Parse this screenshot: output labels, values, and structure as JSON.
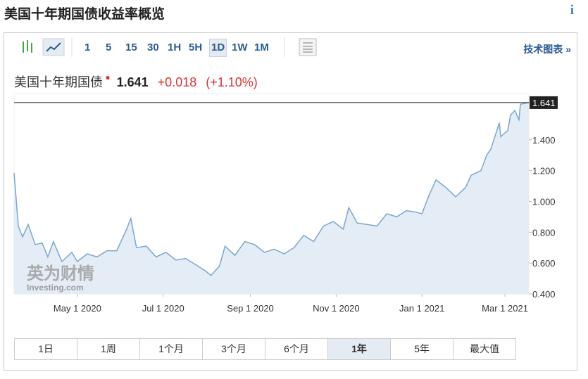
{
  "header": {
    "title": "美国十年期国债收益率概览",
    "info": "i"
  },
  "toolbar": {
    "intervals": [
      "1",
      "5",
      "15",
      "30",
      "1H",
      "5H",
      "1D",
      "1W",
      "1M"
    ],
    "selected_interval": "1D",
    "tech_chart": "技术图表 »"
  },
  "quote": {
    "name": "美国十年期国债",
    "last": "1.641",
    "change": "+0.018",
    "change_pct": "(+1.10%)"
  },
  "watermark": {
    "cn": "英为财情",
    "en": "Investing.com"
  },
  "ranges": {
    "items": [
      "1日",
      "1周",
      "1个月",
      "3个月",
      "6个月",
      "1年",
      "5年",
      "最大值"
    ],
    "selected": "1年"
  },
  "chart_data": {
    "type": "line",
    "color": "#7aa6cf",
    "fill": "#e4edf5",
    "x": [
      "2020-03-17",
      "2020-03-20",
      "2020-03-23",
      "2020-03-27",
      "2020-04-01",
      "2020-04-06",
      "2020-04-10",
      "2020-04-14",
      "2020-04-20",
      "2020-04-27",
      "2020-05-01",
      "2020-05-08",
      "2020-05-15",
      "2020-05-22",
      "2020-05-29",
      "2020-06-05",
      "2020-06-08",
      "2020-06-12",
      "2020-06-19",
      "2020-06-26",
      "2020-07-03",
      "2020-07-10",
      "2020-07-17",
      "2020-07-24",
      "2020-07-31",
      "2020-08-04",
      "2020-08-10",
      "2020-08-14",
      "2020-08-21",
      "2020-08-28",
      "2020-09-04",
      "2020-09-11",
      "2020-09-18",
      "2020-09-25",
      "2020-10-02",
      "2020-10-09",
      "2020-10-16",
      "2020-10-23",
      "2020-10-30",
      "2020-11-06",
      "2020-11-10",
      "2020-11-16",
      "2020-11-23",
      "2020-11-30",
      "2020-12-07",
      "2020-12-14",
      "2020-12-21",
      "2020-12-28",
      "2021-01-01",
      "2021-01-06",
      "2021-01-11",
      "2021-01-18",
      "2021-01-25",
      "2021-02-01",
      "2021-02-05",
      "2021-02-12",
      "2021-02-16",
      "2021-02-19",
      "2021-02-25",
      "2021-02-26",
      "2021-03-03",
      "2021-03-05",
      "2021-03-08",
      "2021-03-11",
      "2021-03-12",
      "2021-03-18"
    ],
    "values": [
      1.185,
      0.84,
      0.77,
      0.85,
      0.72,
      0.73,
      0.64,
      0.74,
      0.61,
      0.67,
      0.61,
      0.66,
      0.64,
      0.68,
      0.68,
      0.82,
      0.89,
      0.7,
      0.71,
      0.64,
      0.67,
      0.62,
      0.63,
      0.59,
      0.55,
      0.52,
      0.58,
      0.71,
      0.65,
      0.74,
      0.72,
      0.67,
      0.69,
      0.66,
      0.7,
      0.78,
      0.74,
      0.84,
      0.87,
      0.82,
      0.96,
      0.86,
      0.85,
      0.84,
      0.92,
      0.9,
      0.94,
      0.93,
      0.92,
      1.04,
      1.14,
      1.09,
      1.03,
      1.09,
      1.17,
      1.2,
      1.3,
      1.34,
      1.51,
      1.42,
      1.46,
      1.56,
      1.59,
      1.53,
      1.63,
      1.641
    ],
    "xlim": [
      "2020-03-17",
      "2021-03-18"
    ],
    "xticks": [
      {
        "value": "2020-05-01",
        "label": "May 1 2020"
      },
      {
        "value": "2020-07-01",
        "label": "Jul 1 2020"
      },
      {
        "value": "2020-09-01",
        "label": "Sep 1 2020"
      },
      {
        "value": "2020-11-01",
        "label": "Nov 1 2020"
      },
      {
        "value": "2021-01-01",
        "label": "Jan 1 2021"
      },
      {
        "value": "2021-03-01",
        "label": "Mar 1 2021"
      }
    ],
    "ylim": [
      0.4,
      1.7
    ],
    "yticks": [
      {
        "value": 0.4,
        "label": "0.400"
      },
      {
        "value": 0.6,
        "label": "0.600"
      },
      {
        "value": 0.8,
        "label": "0.800"
      },
      {
        "value": 1,
        "label": "1.000"
      },
      {
        "value": 1.2,
        "label": "1.200"
      },
      {
        "value": 1.4,
        "label": "1.400"
      }
    ]
  }
}
